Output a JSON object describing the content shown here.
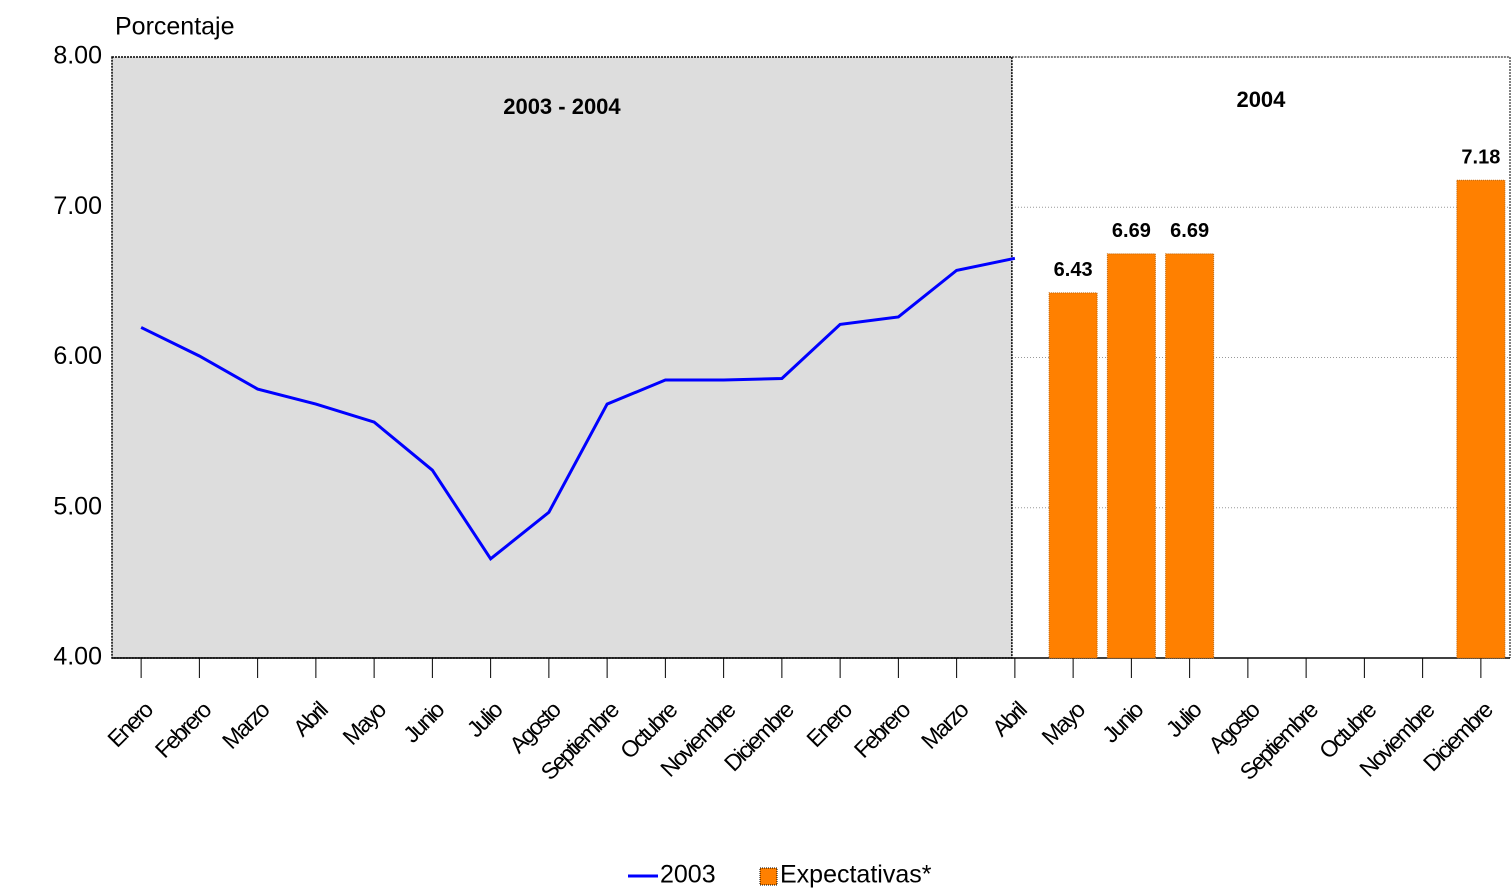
{
  "chart_data": {
    "type": "line_bar",
    "y_label": "Porcentaje",
    "annotations": [
      "2003 - 2004",
      "2004"
    ],
    "categories": [
      "Enero",
      "Febrero",
      "Marzo",
      "Abril",
      "Mayo",
      "Junio",
      "Julio",
      "Agosto",
      "Septiembre",
      "Octubre",
      "Noviembre",
      "Diciembre",
      "Enero",
      "Febrero",
      "Marzo",
      "Abril",
      "Mayo",
      "Junio",
      "Julio",
      "Agosto",
      "Septiembre",
      "Octubre",
      "Noviembre",
      "Diciembre"
    ],
    "series": [
      {
        "name": "2003",
        "type": "line",
        "color": "#0000ff",
        "values": [
          6.2,
          6.01,
          5.79,
          5.69,
          5.57,
          5.25,
          4.66,
          4.97,
          5.69,
          5.85,
          5.85,
          5.86,
          6.22,
          6.27,
          6.58,
          6.66,
          null,
          null,
          null,
          null,
          null,
          null,
          null,
          null
        ]
      },
      {
        "name": "Expectativas*",
        "type": "bar",
        "color": "#ff8000",
        "values": [
          null,
          null,
          null,
          null,
          null,
          null,
          null,
          null,
          null,
          null,
          null,
          null,
          null,
          null,
          null,
          null,
          6.43,
          6.69,
          6.69,
          null,
          null,
          null,
          null,
          7.18
        ],
        "value_labels": [
          null,
          null,
          null,
          null,
          null,
          null,
          null,
          null,
          null,
          null,
          null,
          null,
          null,
          null,
          null,
          null,
          "6.43",
          "6.69",
          "6.69",
          null,
          null,
          null,
          null,
          "7.18"
        ]
      }
    ],
    "ylim": [
      4,
      8
    ],
    "yticks": [
      {
        "value": 4,
        "label": "4.00"
      },
      {
        "value": 5,
        "label": "5.00"
      },
      {
        "value": 6,
        "label": "6.00"
      },
      {
        "value": 7,
        "label": "7.00"
      },
      {
        "value": 8,
        "label": "8.00"
      }
    ],
    "grid": true
  }
}
